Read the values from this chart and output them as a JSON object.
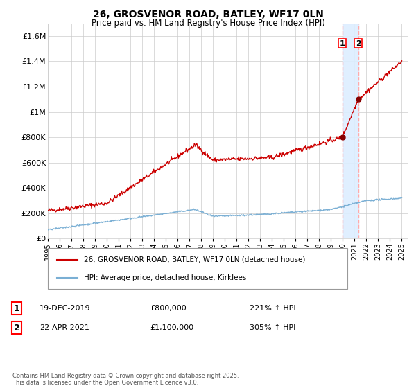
{
  "title_line1": "26, GROSVENOR ROAD, BATLEY, WF17 0LN",
  "title_line2": "Price paid vs. HM Land Registry's House Price Index (HPI)",
  "legend_line1": "26, GROSVENOR ROAD, BATLEY, WF17 0LN (detached house)",
  "legend_line2": "HPI: Average price, detached house, Kirklees",
  "transaction1_date": "19-DEC-2019",
  "transaction1_price": "£800,000",
  "transaction1_hpi": "221% ↑ HPI",
  "transaction2_date": "22-APR-2021",
  "transaction2_price": "£1,100,000",
  "transaction2_hpi": "305% ↑ HPI",
  "copyright_text": "Contains HM Land Registry data © Crown copyright and database right 2025.\nThis data is licensed under the Open Government Licence v3.0.",
  "red_color": "#cc0000",
  "blue_color": "#7aafd4",
  "grid_color": "#cccccc",
  "background_color": "#ffffff",
  "dashed_line_color": "#ffaaaa",
  "shade_color": "#ddeeff",
  "marker_color": "#880000",
  "year_start": 1995,
  "year_end": 2025,
  "ylim_max": 1700000,
  "transaction1_year": 2019.96,
  "transaction2_year": 2021.31,
  "yticks": [
    0,
    200000,
    400000,
    600000,
    800000,
    1000000,
    1200000,
    1400000,
    1600000
  ],
  "ytick_labels": [
    "£0",
    "£200K",
    "£400K",
    "£600K",
    "£800K",
    "£1M",
    "£1.2M",
    "£1.4M",
    "£1.6M"
  ]
}
